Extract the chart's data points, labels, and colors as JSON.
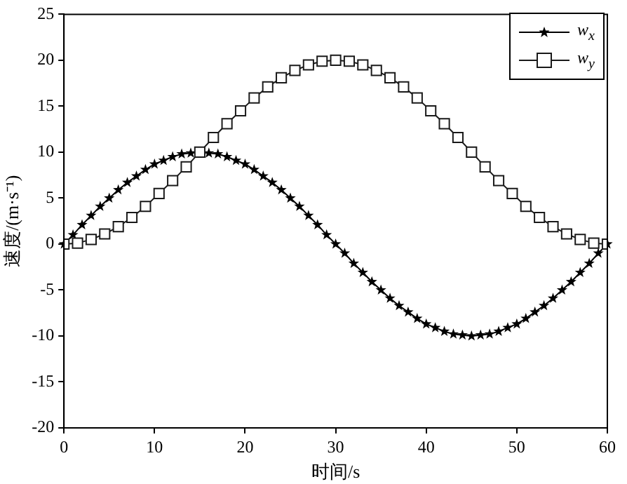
{
  "chart_data": {
    "type": "line",
    "xlabel": "时间/s",
    "ylabel": "速度/(m·s⁻¹)",
    "xlim": [
      0,
      60
    ],
    "xticks": [
      0,
      10,
      20,
      30,
      40,
      50,
      60
    ],
    "ylim": [
      -20,
      25
    ],
    "yticks": [
      -20,
      -15,
      -10,
      -5,
      0,
      5,
      10,
      15,
      20,
      25
    ],
    "grid": false,
    "legend": "top right",
    "series": [
      {
        "name": "w$_{x}$",
        "color": "#000000",
        "marker": "star",
        "x": [
          0,
          1,
          2,
          3,
          4,
          5,
          6,
          7,
          8,
          9,
          10,
          11,
          12,
          13,
          14,
          15,
          16,
          17,
          18,
          19,
          20,
          21,
          22,
          23,
          24,
          25,
          26,
          27,
          28,
          29,
          30,
          31,
          32,
          33,
          34,
          35,
          36,
          37,
          38,
          39,
          40,
          41,
          42,
          43,
          44,
          45,
          46,
          47,
          48,
          49,
          50,
          51,
          52,
          53,
          54,
          55,
          56,
          57,
          58,
          59,
          60
        ],
        "values": [
          0,
          1.0,
          2.1,
          3.1,
          4.1,
          5.0,
          5.9,
          6.7,
          7.4,
          8.1,
          8.7,
          9.1,
          9.5,
          9.8,
          9.9,
          10.0,
          9.9,
          9.8,
          9.5,
          9.1,
          8.7,
          8.1,
          7.4,
          6.7,
          5.9,
          5.0,
          4.1,
          3.1,
          2.1,
          1.0,
          0,
          -1.0,
          -2.1,
          -3.1,
          -4.1,
          -5.0,
          -5.9,
          -6.7,
          -7.4,
          -8.1,
          -8.7,
          -9.1,
          -9.5,
          -9.8,
          -9.9,
          -10.0,
          -9.9,
          -9.8,
          -9.5,
          -9.1,
          -8.7,
          -8.1,
          -7.4,
          -6.7,
          -5.9,
          -5.0,
          -4.1,
          -3.1,
          -2.1,
          -1.0,
          0
        ]
      },
      {
        "name": "w$_{y}$",
        "color": "#1a1a1a",
        "marker": "square",
        "x": [
          0,
          1.5,
          3,
          4.5,
          6,
          7.5,
          9,
          10.5,
          12,
          13.5,
          15,
          16.5,
          18,
          19.5,
          21,
          22.5,
          24,
          25.5,
          27,
          28.5,
          30,
          31.5,
          33,
          34.5,
          36,
          37.5,
          39,
          40.5,
          42,
          43.5,
          45,
          46.5,
          48,
          49.5,
          51,
          52.5,
          54,
          55.5,
          57,
          58.5,
          60
        ],
        "values": [
          0,
          0.1,
          0.5,
          1.1,
          1.9,
          2.9,
          4.1,
          5.5,
          6.9,
          8.4,
          10.0,
          11.6,
          13.1,
          14.5,
          15.9,
          17.1,
          18.1,
          18.9,
          19.5,
          19.9,
          20.0,
          19.9,
          19.5,
          18.9,
          18.1,
          17.1,
          15.9,
          14.5,
          13.1,
          11.6,
          10.0,
          8.4,
          6.9,
          5.5,
          4.1,
          2.9,
          1.9,
          1.1,
          0.5,
          0.1,
          0
        ]
      }
    ]
  }
}
